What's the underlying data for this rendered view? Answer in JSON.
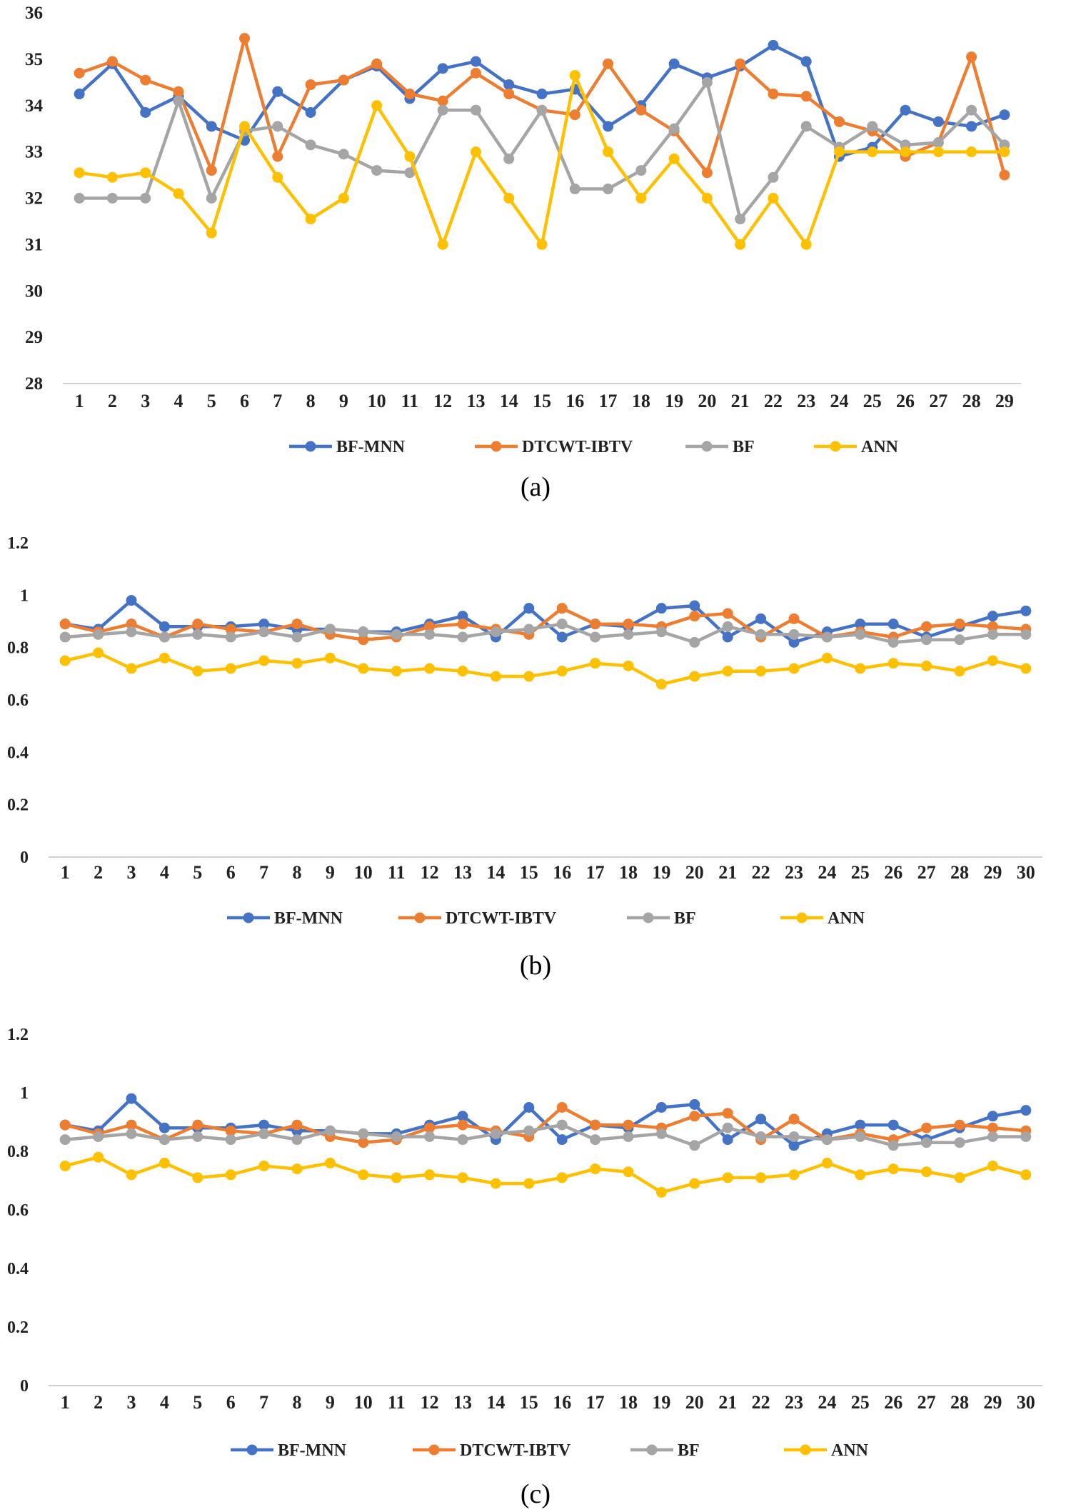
{
  "colors": {
    "BF-MNN": "#4472C4",
    "DTCWT-IBTV": "#ED7D31",
    "BF": "#A5A5A5",
    "ANN": "#FFC000"
  },
  "captions": [
    "(a)",
    "(b)",
    "(c)"
  ],
  "chart_data": [
    {
      "type": "line",
      "panel": "(a)",
      "grid": false,
      "legend_position": "bottom",
      "ylim": [
        28,
        36
      ],
      "yticks": [
        28,
        29,
        30,
        31,
        32,
        33,
        34,
        35,
        36
      ],
      "categories": [
        "1",
        "2",
        "3",
        "4",
        "5",
        "6",
        "7",
        "8",
        "9",
        "10",
        "11",
        "12",
        "13",
        "14",
        "15",
        "16",
        "17",
        "18",
        "19",
        "20",
        "21",
        "22",
        "23",
        "24",
        "25",
        "26",
        "27",
        "28",
        "29"
      ],
      "series": [
        {
          "name": "BF-MNN",
          "values": [
            34.25,
            34.9,
            33.85,
            34.2,
            33.55,
            33.25,
            34.3,
            33.85,
            34.55,
            34.85,
            34.15,
            34.8,
            34.95,
            34.45,
            34.25,
            34.35,
            33.55,
            34.0,
            34.9,
            34.6,
            34.85,
            35.3,
            34.95,
            32.9,
            33.1,
            33.9,
            33.65,
            33.55,
            33.8
          ]
        },
        {
          "name": "DTCWT-IBTV",
          "values": [
            34.7,
            34.95,
            34.55,
            34.3,
            32.6,
            35.45,
            32.9,
            34.45,
            34.55,
            34.9,
            34.25,
            34.1,
            34.7,
            34.25,
            33.9,
            33.8,
            34.9,
            33.9,
            33.45,
            32.55,
            34.9,
            34.25,
            34.2,
            33.65,
            33.45,
            32.9,
            33.2,
            35.05,
            32.5
          ]
        },
        {
          "name": "BF",
          "values": [
            32.0,
            32.0,
            32.0,
            34.1,
            32.0,
            33.45,
            33.55,
            33.15,
            32.95,
            32.6,
            32.55,
            33.9,
            33.9,
            32.85,
            33.9,
            32.2,
            32.2,
            32.6,
            33.5,
            34.5,
            31.55,
            32.45,
            33.55,
            33.1,
            33.55,
            33.15,
            33.2,
            33.9,
            33.15
          ]
        },
        {
          "name": "ANN",
          "values": [
            32.55,
            32.45,
            32.55,
            32.1,
            31.25,
            33.55,
            32.45,
            31.55,
            32.0,
            34.0,
            32.9,
            31.0,
            33.0,
            32.0,
            31.0,
            34.65,
            33.0,
            32.0,
            32.85,
            32.0,
            31.0,
            32.0,
            31.0,
            33.0,
            33.0,
            33.0,
            33.0,
            33.0,
            33.0
          ]
        }
      ]
    },
    {
      "type": "line",
      "panel": "(b)",
      "grid": false,
      "legend_position": "bottom",
      "ylim": [
        0,
        1.2
      ],
      "yticks": [
        "0",
        "0.2",
        "0.4",
        "0.6",
        "0.8",
        "1",
        "1.2"
      ],
      "categories": [
        "1",
        "2",
        "3",
        "4",
        "5",
        "6",
        "7",
        "8",
        "9",
        "10",
        "11",
        "12",
        "13",
        "14",
        "15",
        "16",
        "17",
        "18",
        "19",
        "20",
        "21",
        "22",
        "23",
        "24",
        "25",
        "26",
        "27",
        "28",
        "29",
        "30"
      ],
      "series": [
        {
          "name": "BF-MNN",
          "values": [
            0.89,
            0.87,
            0.98,
            0.88,
            0.88,
            0.88,
            0.89,
            0.87,
            0.87,
            0.86,
            0.86,
            0.89,
            0.92,
            0.84,
            0.95,
            0.84,
            0.89,
            0.88,
            0.95,
            0.96,
            0.84,
            0.91,
            0.82,
            0.86,
            0.89,
            0.89,
            0.84,
            0.88,
            0.92,
            0.94
          ]
        },
        {
          "name": "DTCWT-IBTV",
          "values": [
            0.89,
            0.86,
            0.89,
            0.84,
            0.89,
            0.87,
            0.86,
            0.89,
            0.85,
            0.83,
            0.84,
            0.88,
            0.89,
            0.87,
            0.85,
            0.95,
            0.89,
            0.89,
            0.88,
            0.92,
            0.93,
            0.84,
            0.91,
            0.84,
            0.86,
            0.84,
            0.88,
            0.89,
            0.88,
            0.87
          ]
        },
        {
          "name": "BF",
          "values": [
            0.84,
            0.85,
            0.86,
            0.84,
            0.85,
            0.84,
            0.86,
            0.84,
            0.87,
            0.86,
            0.85,
            0.85,
            0.84,
            0.86,
            0.87,
            0.89,
            0.84,
            0.85,
            0.86,
            0.82,
            0.88,
            0.85,
            0.85,
            0.84,
            0.85,
            0.82,
            0.83,
            0.83,
            0.85,
            0.85
          ]
        },
        {
          "name": "ANN",
          "values": [
            0.75,
            0.78,
            0.72,
            0.76,
            0.71,
            0.72,
            0.75,
            0.74,
            0.76,
            0.72,
            0.71,
            0.72,
            0.71,
            0.69,
            0.69,
            0.71,
            0.74,
            0.73,
            0.66,
            0.69,
            0.71,
            0.71,
            0.72,
            0.76,
            0.72,
            0.74,
            0.73,
            0.71,
            0.75,
            0.72
          ]
        }
      ]
    },
    {
      "type": "line",
      "panel": "(c)",
      "grid": false,
      "legend_position": "bottom",
      "ylim": [
        0,
        1.2
      ],
      "yticks": [
        "0",
        "0.2",
        "0.4",
        "0.6",
        "0.8",
        "1",
        "1.2"
      ],
      "categories": [
        "1",
        "2",
        "3",
        "4",
        "5",
        "6",
        "7",
        "8",
        "9",
        "10",
        "11",
        "12",
        "13",
        "14",
        "15",
        "16",
        "17",
        "18",
        "19",
        "20",
        "21",
        "22",
        "23",
        "24",
        "25",
        "26",
        "27",
        "28",
        "29",
        "30"
      ],
      "series": [
        {
          "name": "BF-MNN",
          "values": [
            0.89,
            0.87,
            0.98,
            0.88,
            0.88,
            0.88,
            0.89,
            0.87,
            0.87,
            0.86,
            0.86,
            0.89,
            0.92,
            0.84,
            0.95,
            0.84,
            0.89,
            0.88,
            0.95,
            0.96,
            0.84,
            0.91,
            0.82,
            0.86,
            0.89,
            0.89,
            0.84,
            0.88,
            0.92,
            0.94
          ]
        },
        {
          "name": "DTCWT-IBTV",
          "values": [
            0.89,
            0.86,
            0.89,
            0.84,
            0.89,
            0.87,
            0.86,
            0.89,
            0.85,
            0.83,
            0.84,
            0.88,
            0.89,
            0.87,
            0.85,
            0.95,
            0.89,
            0.89,
            0.88,
            0.92,
            0.93,
            0.84,
            0.91,
            0.84,
            0.86,
            0.84,
            0.88,
            0.89,
            0.88,
            0.87
          ]
        },
        {
          "name": "BF",
          "values": [
            0.84,
            0.85,
            0.86,
            0.84,
            0.85,
            0.84,
            0.86,
            0.84,
            0.87,
            0.86,
            0.85,
            0.85,
            0.84,
            0.86,
            0.87,
            0.89,
            0.84,
            0.85,
            0.86,
            0.82,
            0.88,
            0.85,
            0.85,
            0.84,
            0.85,
            0.82,
            0.83,
            0.83,
            0.85,
            0.85
          ]
        },
        {
          "name": "ANN",
          "values": [
            0.75,
            0.78,
            0.72,
            0.76,
            0.71,
            0.72,
            0.75,
            0.74,
            0.76,
            0.72,
            0.71,
            0.72,
            0.71,
            0.69,
            0.69,
            0.71,
            0.74,
            0.73,
            0.66,
            0.69,
            0.71,
            0.71,
            0.72,
            0.76,
            0.72,
            0.74,
            0.73,
            0.71,
            0.75,
            0.72
          ]
        }
      ]
    }
  ]
}
